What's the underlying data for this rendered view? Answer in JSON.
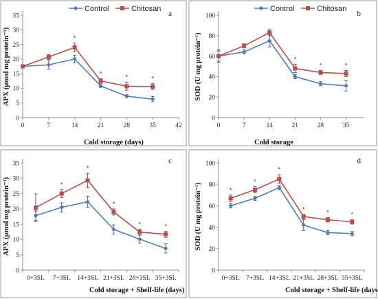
{
  "colors": {
    "control": "#4a7ebb",
    "chitosan": "#be4b48"
  },
  "chart_data": [
    {
      "type": "line",
      "panel": "a",
      "xlabel": "Cold storage (days)",
      "ylabel": "APX (µmol mg protein⁻¹)",
      "x": [
        0,
        7,
        14,
        21,
        28,
        35
      ],
      "x_ticks": [
        "0",
        "7",
        "14",
        "21",
        "28",
        "35",
        "42"
      ],
      "xlim": [
        0,
        42
      ],
      "ylim": [
        0,
        35
      ],
      "y_ticks": [
        "0",
        "5",
        "10",
        "15",
        "20",
        "25",
        "30",
        "35"
      ],
      "legend": "top",
      "series": [
        {
          "name": "Control",
          "values": [
            17.5,
            18.0,
            20.0,
            10.8,
            7.3,
            6.3
          ],
          "errors": [
            0.6,
            1.5,
            1.3,
            0.5,
            0.5,
            0.9
          ]
        },
        {
          "name": "Chitosan",
          "values": [
            17.5,
            20.7,
            24.0,
            12.5,
            10.7,
            10.6
          ],
          "errors": [
            0.6,
            0.8,
            1.5,
            0.8,
            1.4,
            1.0
          ]
        }
      ],
      "significance": [
        "",
        "",
        "*",
        "*",
        "*",
        "*"
      ]
    },
    {
      "type": "line",
      "panel": "b",
      "xlabel": "Cold storage",
      "ylabel": "SOD (U mg protein⁻¹)",
      "x": [
        0,
        7,
        14,
        21,
        28,
        35
      ],
      "x_ticks": [
        "0",
        "7",
        "14",
        "21",
        "28",
        "35"
      ],
      "xlim": [
        0,
        40
      ],
      "ylim": [
        0,
        100
      ],
      "y_ticks": [
        "0",
        "20",
        "40",
        "60",
        "80",
        "100"
      ],
      "legend": "top",
      "series": [
        {
          "name": "Control",
          "values": [
            60,
            64,
            75,
            40,
            33,
            31
          ],
          "errors": [
            6,
            2,
            6,
            2,
            2,
            5
          ]
        },
        {
          "name": "Chitosan",
          "values": [
            60,
            70,
            83,
            48,
            44,
            43
          ],
          "errors": [
            5,
            2,
            3,
            4,
            2,
            3
          ]
        }
      ],
      "significance": [
        "",
        "",
        "",
        "*",
        "*",
        "*"
      ]
    },
    {
      "type": "line",
      "panel": "c",
      "xlabel": "Cold storage + Shelf-life (days)",
      "ylabel": "APX (µmol mg protein⁻¹)",
      "categories": [
        "0+3SL",
        "7+3SL",
        "14+3SL",
        "21+3SL",
        "28+3SL",
        "35+3SL"
      ],
      "ylim": [
        0,
        35
      ],
      "y_ticks": [
        "0",
        "5",
        "10",
        "15",
        "20",
        "25",
        "30",
        "35"
      ],
      "series": [
        {
          "name": "Control",
          "values": [
            17.8,
            20.5,
            22.3,
            13.3,
            10.1,
            7.1
          ],
          "errors": [
            1.5,
            1.5,
            1.8,
            1.5,
            1.3,
            1.5
          ]
        },
        {
          "name": "Chitosan",
          "values": [
            20.4,
            25.0,
            29.3,
            19.0,
            12.4,
            11.7
          ],
          "errors": [
            4.5,
            1.3,
            2.3,
            1.0,
            1.0,
            1.0
          ]
        }
      ],
      "significance": [
        "",
        "*",
        "*",
        "*",
        "*",
        "*"
      ]
    },
    {
      "type": "line",
      "panel": "d",
      "xlabel": "Cold storage + Shelf-life (days)",
      "ylabel": "SOD (U mg protein⁻¹)",
      "categories": [
        "0+3SL",
        "7+3SL",
        "14+3SL",
        "21+3SL",
        "28+3SL",
        "35+3SL"
      ],
      "ylim": [
        0,
        100
      ],
      "y_ticks": [
        "0",
        "20",
        "40",
        "60",
        "80",
        "100"
      ],
      "series": [
        {
          "name": "Control",
          "values": [
            60,
            67,
            77,
            42,
            35,
            34
          ],
          "errors": [
            2,
            2,
            2,
            5,
            2,
            2
          ]
        },
        {
          "name": "Chitosan",
          "values": [
            67,
            75,
            85,
            50,
            47,
            45
          ],
          "errors": [
            3,
            3,
            4,
            2,
            2,
            2
          ]
        }
      ],
      "significance": [
        "*",
        "*",
        "*",
        "*",
        "*",
        "*"
      ]
    }
  ]
}
